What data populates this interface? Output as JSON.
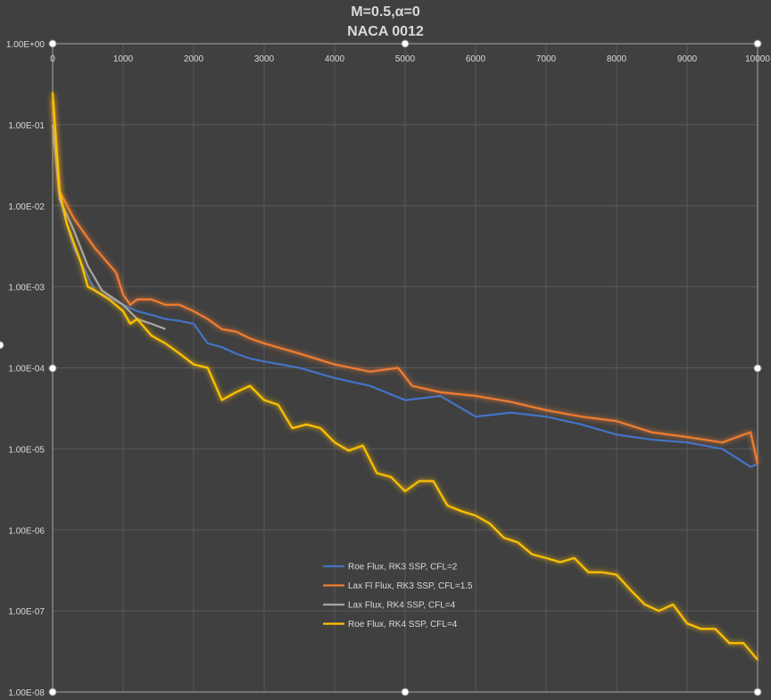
{
  "chart_data": {
    "type": "line",
    "title": [
      "M=0.5,α=0",
      "NACA 0012"
    ],
    "xlabel": "",
    "ylabel": "",
    "xlim": [
      0,
      10000
    ],
    "ylim": [
      1e-08,
      1
    ],
    "yscale": "log",
    "grid": true,
    "legend_position": "bottom-left inside plot",
    "x_ticks": [
      "0",
      "1000",
      "2000",
      "3000",
      "4000",
      "5000",
      "6000",
      "7000",
      "8000",
      "9000",
      "10000"
    ],
    "y_ticks": [
      "1.00E+00",
      "1.00E-01",
      "1.00E-02",
      "1.00E-03",
      "1.00E-04",
      "1.00E-05",
      "1.00E-06",
      "1.00E-07",
      "1.00E-08"
    ],
    "series": [
      {
        "name": "Roe Flux, RK3 SSP, CFL=2",
        "color": "#4472c4",
        "glow": false,
        "x": [
          0,
          100,
          300,
          600,
          1000,
          1200,
          1400,
          1600,
          1800,
          2000,
          2200,
          2400,
          2600,
          2800,
          3000,
          3500,
          4000,
          4500,
          5000,
          5500,
          6000,
          6500,
          7000,
          7500,
          8000,
          8500,
          9000,
          9500,
          9900,
          10000
        ],
        "y": [
          0.13,
          0.012,
          0.003,
          0.0009,
          0.0006,
          0.0005,
          0.00045,
          0.0004,
          0.00038,
          0.00035,
          0.0002,
          0.00018,
          0.00015,
          0.00013,
          0.00012,
          0.0001,
          7.5e-05,
          6e-05,
          4e-05,
          4.5e-05,
          2.5e-05,
          2.8e-05,
          2.5e-05,
          2e-05,
          1.5e-05,
          1.3e-05,
          1.2e-05,
          1e-05,
          6e-06,
          6.5e-06
        ]
      },
      {
        "name": "Lax Fl Flux, RK3 SSP, CFL=1.5",
        "color": "#ed7d31",
        "glow": true,
        "x": [
          0,
          100,
          300,
          600,
          900,
          1000,
          1100,
          1200,
          1400,
          1600,
          1800,
          2000,
          2200,
          2400,
          2600,
          2800,
          3000,
          3500,
          4000,
          4500,
          4900,
          5100,
          5500,
          6000,
          6500,
          7000,
          7500,
          8000,
          8500,
          9000,
          9500,
          9800,
          9900,
          10000
        ],
        "y": [
          0.2,
          0.015,
          0.007,
          0.003,
          0.0015,
          0.0008,
          0.0006,
          0.0007,
          0.0007,
          0.0006,
          0.0006,
          0.0005,
          0.0004,
          0.0003,
          0.00028,
          0.00023,
          0.0002,
          0.00015,
          0.00011,
          9e-05,
          0.0001,
          6e-05,
          5e-05,
          4.5e-05,
          3.8e-05,
          3e-05,
          2.5e-05,
          2.2e-05,
          1.6e-05,
          1.4e-05,
          1.2e-05,
          1.5e-05,
          1.6e-05,
          6.5e-06
        ]
      },
      {
        "name": "Lax Flux, RK4 SSP, CFL=4",
        "color": "#a5a5a5",
        "glow": false,
        "x": [
          0,
          100,
          300,
          500,
          700,
          1000,
          1200,
          1400,
          1600
        ],
        "y": [
          0.1,
          0.012,
          0.005,
          0.0018,
          0.0009,
          0.0006,
          0.0004,
          0.00035,
          0.0003
        ]
      },
      {
        "name": "Roe Flux, RK4 SSP, CFL=4",
        "color": "#ffc000",
        "glow": true,
        "x": [
          0,
          100,
          200,
          400,
          500,
          600,
          800,
          1000,
          1100,
          1200,
          1400,
          1600,
          1800,
          2000,
          2200,
          2400,
          2600,
          2800,
          3000,
          3200,
          3400,
          3600,
          3800,
          4000,
          4200,
          4400,
          4600,
          4800,
          5000,
          5200,
          5400,
          5600,
          5800,
          6000,
          6200,
          6400,
          6600,
          6800,
          7000,
          7200,
          7400,
          7600,
          7800,
          8000,
          8200,
          8400,
          8600,
          8800,
          9000,
          9200,
          9400,
          9600,
          9800,
          10000
        ],
        "y": [
          0.25,
          0.015,
          0.006,
          0.002,
          0.001,
          0.0009,
          0.0007,
          0.0005,
          0.00035,
          0.0004,
          0.00025,
          0.0002,
          0.00015,
          0.00011,
          0.0001,
          4e-05,
          5e-05,
          6e-05,
          4e-05,
          3.5e-05,
          1.8e-05,
          2e-05,
          1.8e-05,
          1.2e-05,
          9.5e-06,
          1.1e-05,
          5e-06,
          4.5e-06,
          3e-06,
          4e-06,
          4e-06,
          2e-06,
          1.7e-06,
          1.5e-06,
          1.2e-06,
          8e-07,
          7e-07,
          5e-07,
          4.5e-07,
          4e-07,
          4.5e-07,
          3e-07,
          3e-07,
          2.8e-07,
          1.8e-07,
          1.2e-07,
          1e-07,
          1.2e-07,
          7e-08,
          6e-08,
          6e-08,
          4e-08,
          4e-08,
          2.5e-08
        ]
      }
    ]
  }
}
